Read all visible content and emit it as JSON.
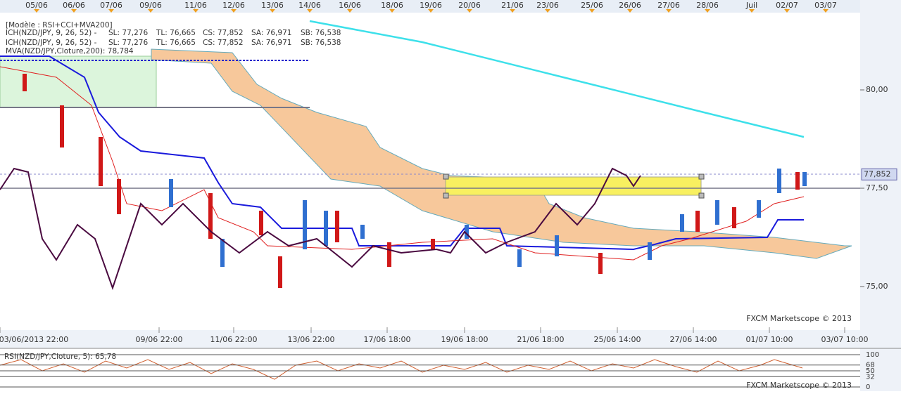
{
  "top_dates": [
    "05/06",
    "06/06",
    "07/06",
    "09/06",
    "11/06",
    "12/06",
    "13/06",
    "14/06",
    "16/06",
    "18/06",
    "19/06",
    "20/06",
    "21/06",
    "23/06",
    "25/06",
    "26/06",
    "27/06",
    "28/06",
    "Juil",
    "02/07",
    "03/07"
  ],
  "legend": {
    "model": "[Modèle : RSI+CCI+MVA200]",
    "ich": [
      {
        "label": "ICH(NZD/JPY, 9, 26, 52) -",
        "sl": "SL: 77,276",
        "tl": "TL: 76,665",
        "cs": "CS: 77,852",
        "sa": "SA: 76,971",
        "sb": "SB: 76,538"
      },
      {
        "label": "ICH(NZD/JPY, 9, 26, 52) -",
        "sl": "SL: 77,276",
        "tl": "TL: 76,665",
        "cs": "CS: 77,852",
        "sa": "SA: 76,971",
        "sb": "SB: 76,538"
      }
    ],
    "mva": "MVA(NZD/JPY,Cloture,200): 78,784"
  },
  "price_axis": {
    "ticks": [
      {
        "value": 80,
        "label": "80,00"
      },
      {
        "value": 77.5,
        "label": "77,50"
      },
      {
        "value": 75,
        "label": "75,00"
      }
    ],
    "current": {
      "value": 77.852,
      "label": "77,852"
    }
  },
  "time_axis": [
    "03/06/2013 22:00",
    "09/06 22:00",
    "11/06 22:00",
    "13/06 22:00",
    "17/06 18:00",
    "19/06 18:00",
    "21/06 18:00",
    "25/06 14:00",
    "27/06 14:00",
    "01/07 10:00",
    "03/07 10:00"
  ],
  "rsi": {
    "label": "RSI(NZD/JPY,Cloture, 5): 65,78",
    "ticks": [
      100,
      68,
      50,
      32,
      0
    ]
  },
  "watermark": [
    "FXCM Marketscope © 2013",
    "FXCM Marketscope © 2013"
  ]
}
